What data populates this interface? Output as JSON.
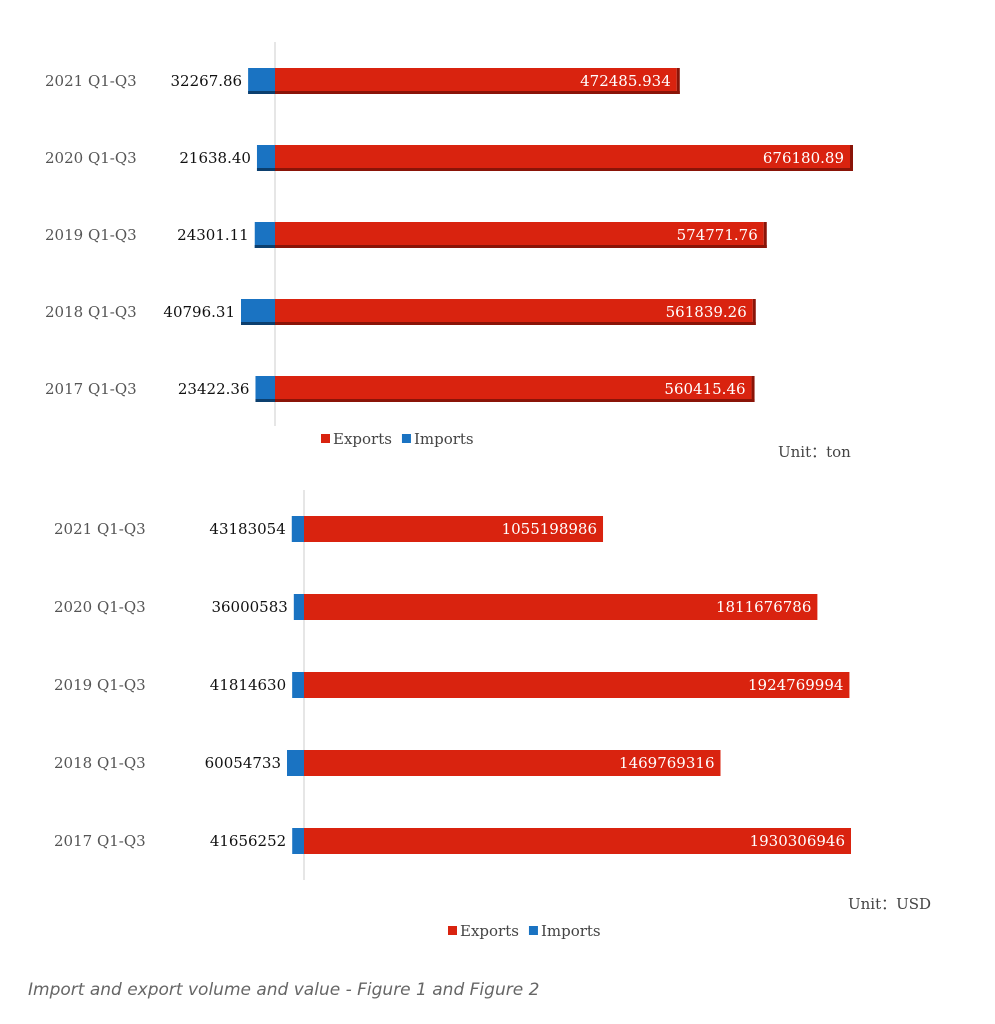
{
  "colors": {
    "exports": "#d9230f",
    "exports_edge": "#8a1408",
    "imports": "#1a73c2",
    "imports_edge": "#0c3f6e",
    "axis": "#cccccc"
  },
  "caption": "Import and export volume and value - Figure 1 and Figure 2",
  "chart_data": [
    {
      "type": "bar",
      "orientation": "horizontal",
      "categories": [
        "2021 Q1-Q3",
        "2020 Q1-Q3",
        "2019 Q1-Q3",
        "2018 Q1-Q3",
        "2017 Q1-Q3"
      ],
      "series": [
        {
          "name": "Exports",
          "values": [
            472485.934,
            676180.89,
            574771.76,
            561839.26,
            560415.46
          ],
          "labels": [
            "472485.934",
            "676180.89",
            "574771.76",
            "561839.26",
            "560415.46"
          ]
        },
        {
          "name": "Imports",
          "values": [
            32267.86,
            21638.4,
            24301.11,
            40796.31,
            23422.36
          ],
          "labels": [
            "32267.86",
            "21638.40",
            "24301.11",
            "40796.31",
            "23422.36"
          ]
        }
      ],
      "unit": "Unit：ton",
      "legend": "bottom",
      "grid": false
    },
    {
      "type": "bar",
      "orientation": "horizontal",
      "categories": [
        "2021 Q1-Q3",
        "2020 Q1-Q3",
        "2019 Q1-Q3",
        "2018 Q1-Q3",
        "2017 Q1-Q3"
      ],
      "series": [
        {
          "name": "Exports",
          "values": [
            1055198986,
            1811676786,
            1924769994,
            1469769316,
            1930306946
          ],
          "labels": [
            "1055198986",
            "1811676786",
            "1924769994",
            "1469769316",
            "1930306946"
          ]
        },
        {
          "name": "Imports",
          "values": [
            43183054,
            36000583,
            41814630,
            60054733,
            41656252
          ],
          "labels": [
            "43183054",
            "36000583",
            "41814630",
            "60054733",
            "41656252"
          ]
        }
      ],
      "unit": "Unit：USD",
      "legend": "bottom",
      "grid": false
    }
  ]
}
